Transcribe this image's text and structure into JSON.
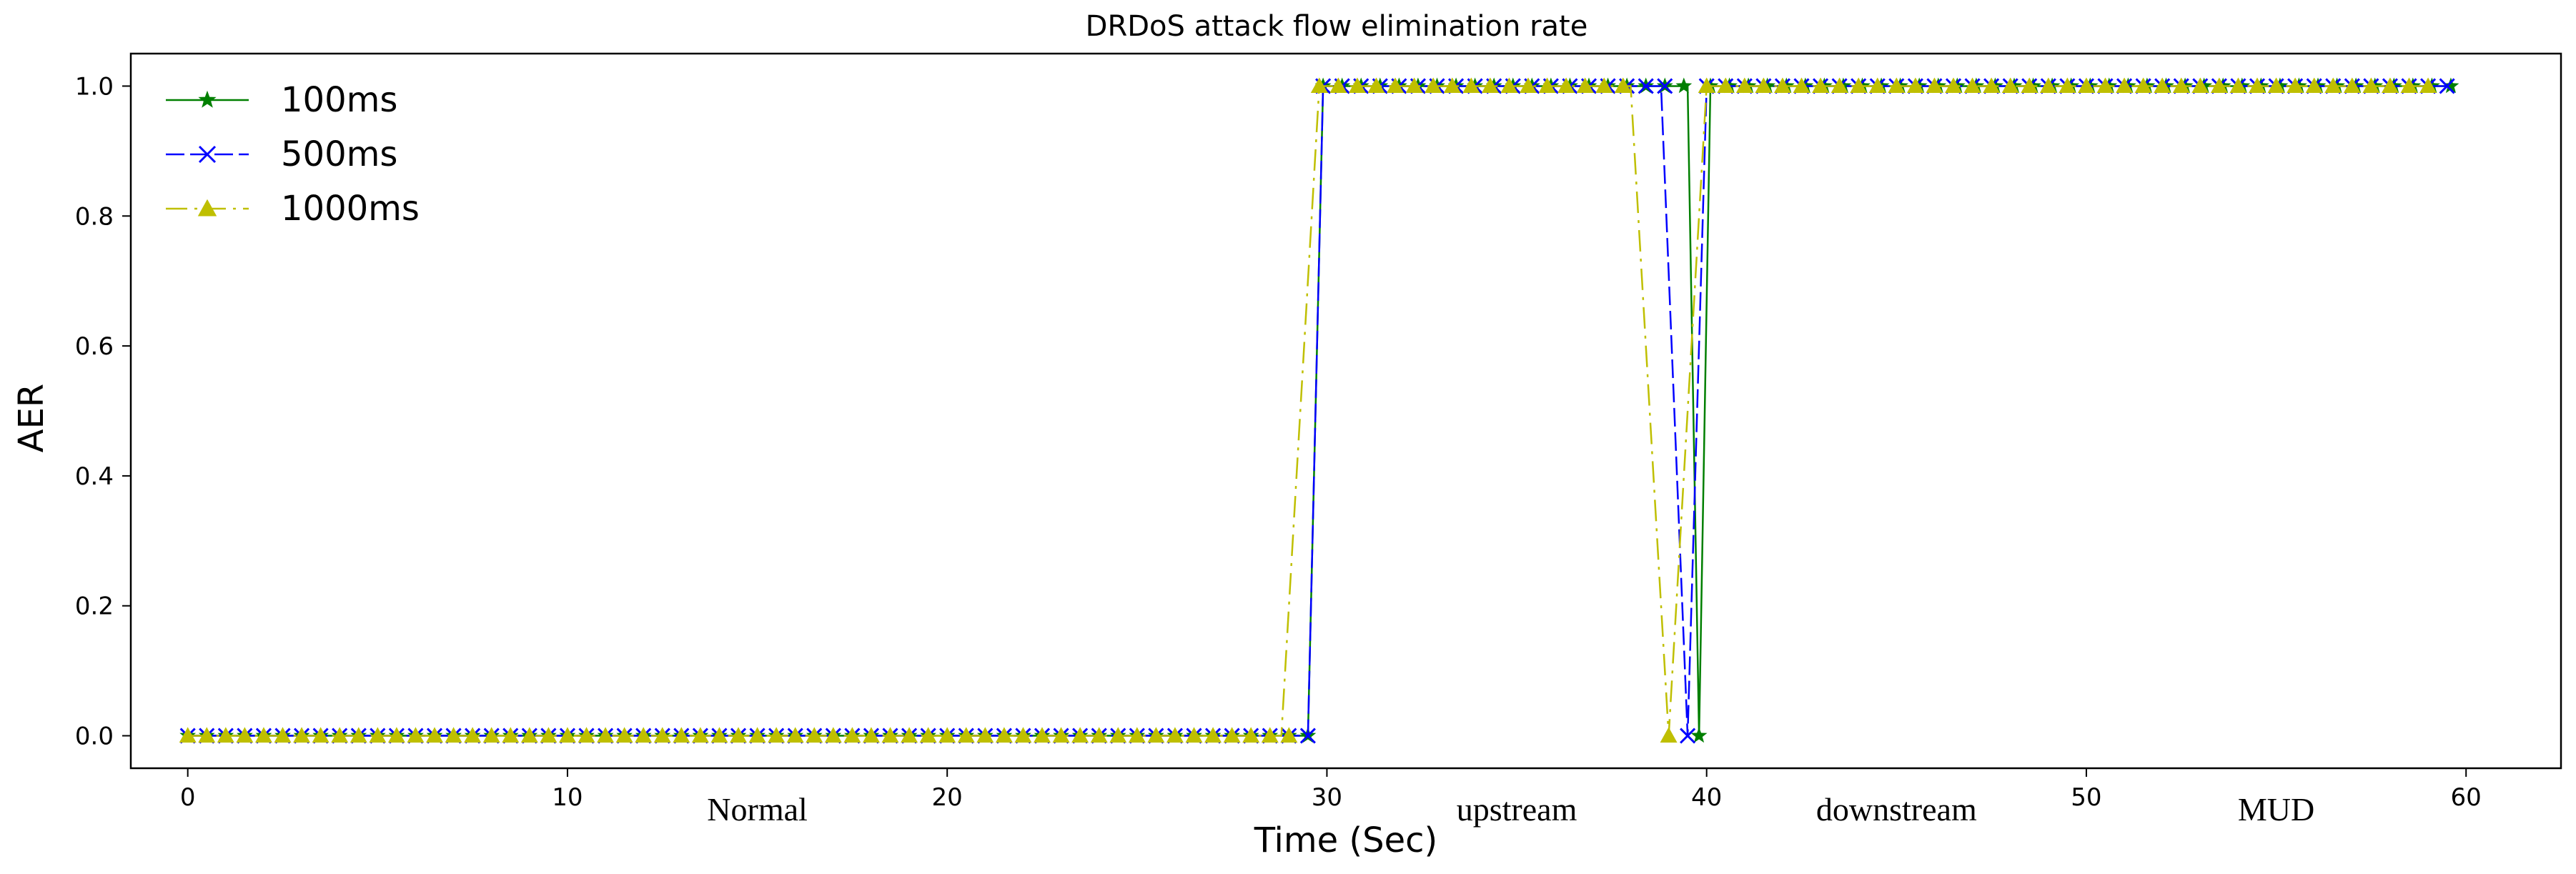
{
  "chart_data": {
    "type": "line",
    "title": "DRDoS attack flow elimination rate",
    "xlabel": "Time (Sec)",
    "ylabel": "AER",
    "xlim": [
      -1.5,
      62.5
    ],
    "ylim": [
      -0.05,
      1.05
    ],
    "xticks": [
      0,
      10,
      20,
      30,
      40,
      50,
      60
    ],
    "yticks": [
      0.0,
      0.2,
      0.4,
      0.6,
      0.8,
      1.0
    ],
    "xtick_labels": [
      "0",
      "10",
      "20",
      "30",
      "40",
      "50",
      "60"
    ],
    "ytick_labels": [
      "0.0",
      "0.2",
      "0.4",
      "0.6",
      "0.8",
      "1.0"
    ],
    "grid": false,
    "legend_location": "upper-left",
    "phase_labels": [
      {
        "text": "Normal",
        "x": 15
      },
      {
        "text": "upstream",
        "x": 35
      },
      {
        "text": "downstream",
        "x": 45
      },
      {
        "text": "MUD",
        "x": 55
      }
    ],
    "sample_interval": 0.5,
    "series": [
      {
        "name": "100ms",
        "color": "#007f00",
        "marker": "star",
        "dash": "solid",
        "segments": [
          {
            "start": 0,
            "end": 29.5,
            "value": 0.0
          },
          {
            "start": 29.9,
            "end": 39.5,
            "value": 1.0
          },
          {
            "start": 39.8,
            "end": 39.8,
            "value": 0.0
          },
          {
            "start": 40.1,
            "end": 59.5,
            "value": 1.0
          }
        ]
      },
      {
        "name": "500ms",
        "color": "#0000ff",
        "marker": "x",
        "dash": "longdash",
        "segments": [
          {
            "start": 0,
            "end": 29.5,
            "value": 0.0
          },
          {
            "start": 29.9,
            "end": 38.8,
            "value": 1.0
          },
          {
            "start": 39.5,
            "end": 39.5,
            "value": 0.0
          },
          {
            "start": 40.0,
            "end": 59.5,
            "value": 1.0
          }
        ]
      },
      {
        "name": "1000ms",
        "color": "#bfbf00",
        "marker": "triangle",
        "dash": "dashdot",
        "segments": [
          {
            "start": 0,
            "end": 28.8,
            "value": 0.0
          },
          {
            "start": 29.8,
            "end": 38.0,
            "value": 1.0
          },
          {
            "start": 39.0,
            "end": 39.0,
            "value": 0.0
          },
          {
            "start": 40.0,
            "end": 59.0,
            "value": 1.0
          }
        ]
      }
    ]
  }
}
